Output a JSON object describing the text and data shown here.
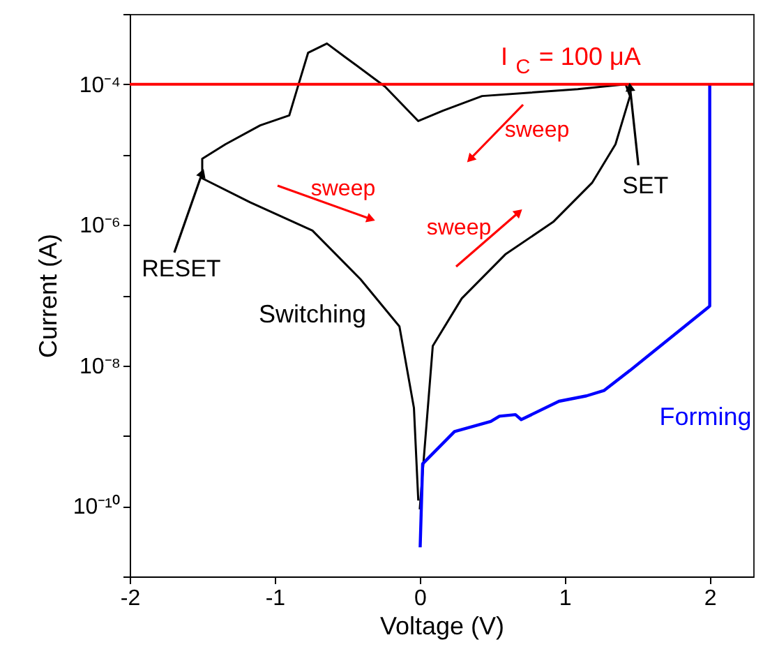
{
  "chart_data": {
    "type": "line",
    "xlabel": "Voltage (V)",
    "ylabel": "Current (A)",
    "log": "y",
    "grid": false,
    "marker": "none",
    "line_style": "solid",
    "xlim": [
      -2,
      2.3
    ],
    "xticks": [
      -2,
      -1,
      0,
      1,
      2
    ],
    "ylim": [
      1e-11,
      0.001
    ],
    "yticks": [
      {
        "value": 0.001,
        "label": null
      },
      {
        "value": 0.0001,
        "label": "10⁻⁴"
      },
      {
        "value": 1e-05,
        "label": null
      },
      {
        "value": 1e-06,
        "label": "10⁻⁶"
      },
      {
        "value": 1e-07,
        "label": null
      },
      {
        "value": 1e-08,
        "label": "10⁻⁸"
      },
      {
        "value": 1e-09,
        "label": null
      },
      {
        "value": 1e-10,
        "label": "10⁻¹⁰"
      },
      {
        "value": 1e-11,
        "label": null
      }
    ],
    "series": [
      {
        "name": "Switching",
        "color": "#000000",
        "x": [
          0,
          0.09,
          0.29,
          0.59,
          0.92,
          1.19,
          1.35,
          1.45,
          1.42,
          1.09,
          0.43,
          0.16,
          -0.01,
          -0.24,
          -0.51,
          -0.64,
          -0.77,
          -0.84,
          -0.9,
          -1.1,
          -1.34,
          -1.5,
          -1.5,
          -1.17,
          -0.74,
          -0.41,
          -0.14,
          -0.04,
          -0.01
        ],
        "values": [
          9e-11,
          1.9e-08,
          9e-08,
          3.8e-07,
          1.1e-06,
          4e-06,
          1.4e-05,
          6.8e-05,
          0.0001,
          8.5e-05,
          6.8e-05,
          4.2e-05,
          3e-05,
          9.3e-05,
          0.00024,
          0.00038,
          0.00028,
          9.3e-05,
          3.6e-05,
          2.6e-05,
          1.4e-05,
          8.7e-06,
          4.6e-06,
          2.1e-06,
          8.3e-07,
          1.7e-07,
          3.6e-08,
          2.5e-09,
          1.2e-10
        ]
      },
      {
        "name": "Forming",
        "color": "#0000ff",
        "x": [
          0.003,
          0.02,
          0.24,
          0.49,
          0.55,
          0.66,
          0.7,
          0.96,
          1.15,
          1.27,
          1.45,
          2.0,
          2.0
        ],
        "values": [
          2.6e-11,
          4e-10,
          1.15e-09,
          1.6e-09,
          1.9e-09,
          2e-09,
          1.7e-09,
          3.1e-09,
          3.7e-09,
          4.4e-09,
          8.5e-09,
          7e-08,
          0.0001
        ]
      }
    ],
    "ref_lines": [
      {
        "axis": "y",
        "value": 0.0001,
        "label": "I$_{C}$ = 100 μA",
        "color": "#ff0000",
        "line_style": "solid"
      }
    ],
    "annotations": [
      {
        "text": "RESET",
        "x": -1.5,
        "y": 6e-06
      },
      {
        "text": "SET",
        "x": 1.45,
        "y": 0.0001
      },
      "sweep",
      "sweep",
      "sweep"
    ]
  }
}
